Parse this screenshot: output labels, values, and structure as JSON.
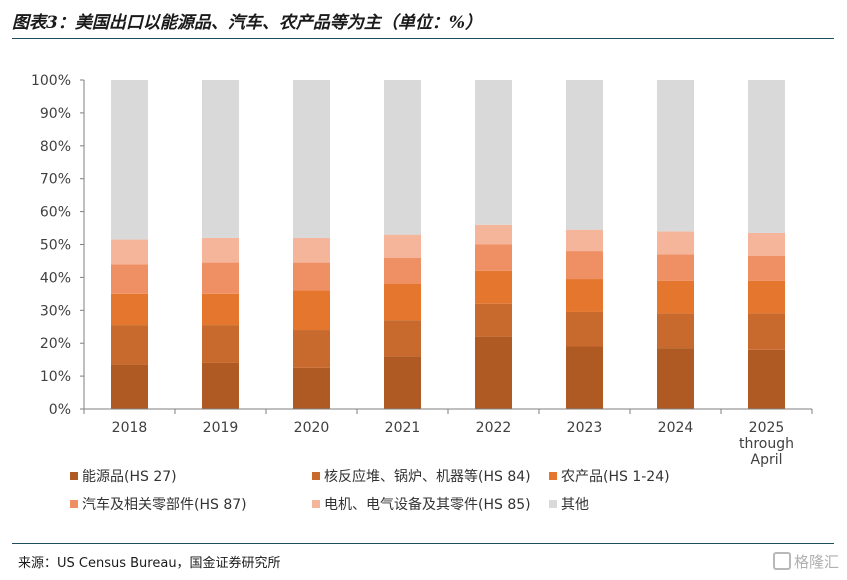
{
  "header": {
    "title": "图表3：美国出口以能源品、汽车、农产品等为主（单位：%）"
  },
  "footer": {
    "source": "来源：US Census Bureau，国金证券研究所",
    "watermark": "格隆汇"
  },
  "chart_data": {
    "type": "bar",
    "stacked": true,
    "categories": [
      "2018",
      "2019",
      "2020",
      "2021",
      "2022",
      "2023",
      "2024",
      "2025 through April"
    ],
    "ylim": [
      0,
      100
    ],
    "yticks": [
      "0%",
      "10%",
      "20%",
      "30%",
      "40%",
      "50%",
      "60%",
      "70%",
      "80%",
      "90%",
      "100%"
    ],
    "grid": false,
    "legend_position": "bottom",
    "series": [
      {
        "name": "能源品(HS 27)",
        "color": "#b05a23",
        "values": [
          13.5,
          14,
          12.5,
          16,
          22,
          19,
          18.5,
          18
        ]
      },
      {
        "name": "核反应堆、锅炉、机器等(HS 84)",
        "color": "#c86a2e",
        "values": [
          12,
          11.5,
          11.5,
          11,
          10,
          10.5,
          10.5,
          11
        ]
      },
      {
        "name": "农产品(HS 1-24)",
        "color": "#e4762e",
        "values": [
          9.5,
          9.5,
          12,
          11,
          10,
          10,
          10,
          10
        ]
      },
      {
        "name": "汽车及相关零部件(HS 87)",
        "color": "#ef8f64",
        "values": [
          9,
          9.5,
          8.5,
          8,
          8,
          8.5,
          8,
          7.5
        ]
      },
      {
        "name": "电机、电气设备及其零件(HS 85)",
        "color": "#f4b59b",
        "values": [
          7.5,
          7.5,
          7.5,
          7,
          6,
          6.5,
          7,
          7
        ]
      },
      {
        "name": "其他",
        "color": "#d9d9d9",
        "values": [
          48.5,
          48,
          48,
          47,
          44,
          45.5,
          46,
          46.5
        ]
      }
    ]
  }
}
